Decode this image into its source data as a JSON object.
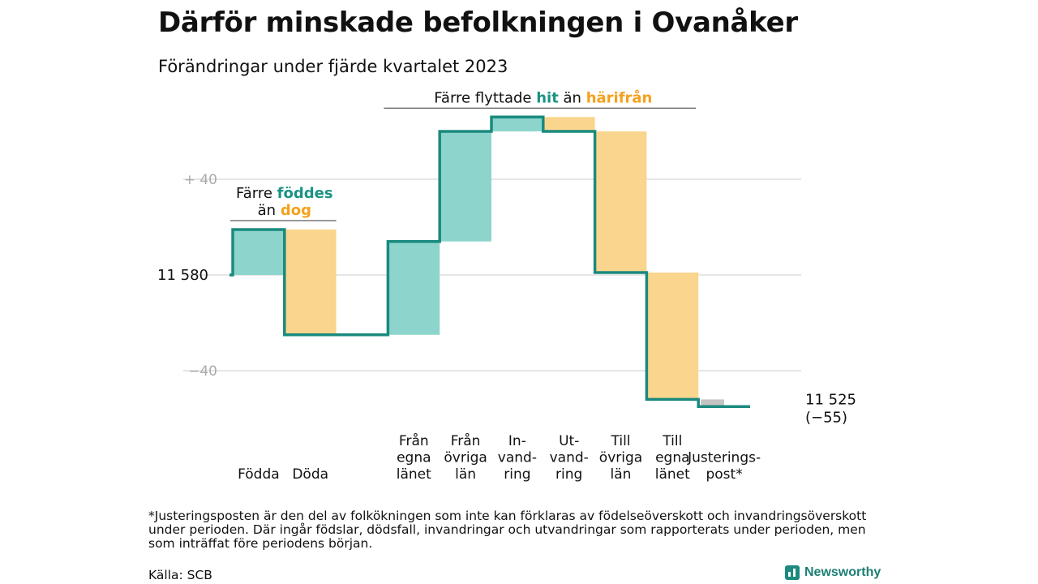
{
  "header": {
    "title": "Därför minskade befolkningen i Ovanåker",
    "subtitle": "Förändringar under fjärde kvartalet 2023"
  },
  "footer": {
    "footnote": "*Justeringsposten är den del av folkökningen som inte kan förklaras av födelseöverskott och invandringsöverskott under perioden. Där ingår födslar, dödsfall, invandringar och utvandringar som rapporterats under perioden, men som inträffat före periodens början.",
    "source": "Källa: SCB",
    "brand": "Newsworthy"
  },
  "colors": {
    "teal_line": "#1a8a7e",
    "teal_fill": "#8dd5cc",
    "orange_fill": "#fad58d",
    "orange_text": "#f5a11d",
    "teal_text": "#1a9385",
    "grey_fill": "#c4c4c4",
    "grid": "#dddddd"
  },
  "chart_data": {
    "type": "waterfall",
    "start_value": 11580,
    "start_label": "11  580",
    "end_value": 11525,
    "end_label": "11 525",
    "change_label": "(−55)",
    "ylim": [
      -58,
      75
    ],
    "y_ticks": [
      {
        "value": 40,
        "label": "+  40"
      },
      {
        "value": 0,
        "label": ""
      },
      {
        "value": -40,
        "label": "−40"
      }
    ],
    "categories": [
      {
        "lines": [
          "Födda"
        ],
        "value": 19,
        "kind": "positive"
      },
      {
        "lines": [
          "Döda"
        ],
        "value": -44,
        "kind": "negative"
      },
      {
        "lines": [
          ""
        ],
        "value": 0,
        "kind": "gap"
      },
      {
        "lines": [
          "Från",
          "egna",
          "länet"
        ],
        "value": 39,
        "kind": "positive"
      },
      {
        "lines": [
          "Från",
          "övriga",
          "län"
        ],
        "value": 46,
        "kind": "positive"
      },
      {
        "lines": [
          "In-",
          "vand-",
          "ring"
        ],
        "value": 6,
        "kind": "positive"
      },
      {
        "lines": [
          "Ut-",
          "vand-",
          "ring"
        ],
        "value": -6,
        "kind": "negative"
      },
      {
        "lines": [
          "Till",
          "övriga",
          "län"
        ],
        "value": -59,
        "kind": "negative"
      },
      {
        "lines": [
          "Till",
          "egna",
          "länet"
        ],
        "value": -53,
        "kind": "negative"
      },
      {
        "lines": [
          "Justerings-",
          "post*"
        ],
        "value": -3,
        "kind": "adjustment"
      }
    ],
    "annotations": [
      {
        "span": [
          0,
          1
        ],
        "lines": [
          [
            {
              "text": "Färre ",
              "style": "plain"
            },
            {
              "text": "föddes",
              "style": "teal"
            }
          ],
          [
            {
              "text": "än ",
              "style": "plain"
            },
            {
              "text": "dog",
              "style": "orange"
            }
          ]
        ]
      },
      {
        "span": [
          3,
          8
        ],
        "lines": [
          [
            {
              "text": "Färre flyttade ",
              "style": "plain"
            },
            {
              "text": "hit",
              "style": "teal"
            },
            {
              "text": " än ",
              "style": "plain"
            },
            {
              "text": "härifrån",
              "style": "orange"
            }
          ]
        ]
      }
    ]
  }
}
